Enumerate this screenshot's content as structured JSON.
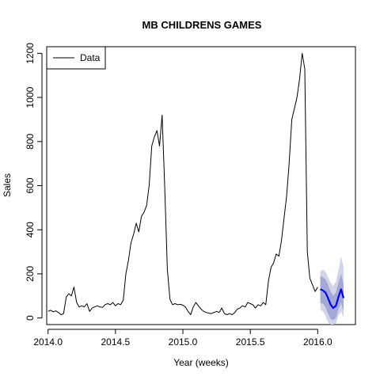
{
  "chart_data": {
    "type": "line",
    "title": "MB CHILDRENS GAMES",
    "xlabel": "Year (weeks)",
    "ylabel": "Sales",
    "xlim": [
      2013.99,
      2016.28
    ],
    "ylim": [
      -30,
      1230
    ],
    "x_ticks": [
      2014.0,
      2014.5,
      2015.0,
      2015.5,
      2016.0
    ],
    "x_tick_labels": [
      "2014.0",
      "2014.5",
      "2015.0",
      "2015.5",
      "2016.0"
    ],
    "y_ticks": [
      0,
      200,
      400,
      600,
      800,
      1000,
      1200
    ],
    "y_tick_labels": [
      "0",
      "200",
      "400",
      "600",
      "800",
      "1000",
      "1200"
    ],
    "legend": {
      "position": "top-left",
      "entries": [
        {
          "label": "Data",
          "color": "#000000"
        }
      ]
    },
    "series": [
      {
        "name": "Data",
        "color": "#000000",
        "x": [
          2014.0,
          2014.019,
          2014.038,
          2014.058,
          2014.077,
          2014.096,
          2014.115,
          2014.135,
          2014.154,
          2014.173,
          2014.192,
          2014.212,
          2014.231,
          2014.25,
          2014.269,
          2014.288,
          2014.308,
          2014.327,
          2014.346,
          2014.365,
          2014.385,
          2014.404,
          2014.423,
          2014.442,
          2014.462,
          2014.481,
          2014.5,
          2014.519,
          2014.538,
          2014.558,
          2014.577,
          2014.596,
          2014.615,
          2014.635,
          2014.654,
          2014.673,
          2014.692,
          2014.712,
          2014.731,
          2014.75,
          2014.769,
          2014.788,
          2014.808,
          2014.827,
          2014.846,
          2014.865,
          2014.885,
          2014.904,
          2014.923,
          2014.942,
          2014.962,
          2014.981,
          2015.0,
          2015.019,
          2015.038,
          2015.058,
          2015.077,
          2015.096,
          2015.115,
          2015.135,
          2015.154,
          2015.173,
          2015.192,
          2015.212,
          2015.231,
          2015.25,
          2015.269,
          2015.288,
          2015.308,
          2015.327,
          2015.346,
          2015.365,
          2015.385,
          2015.404,
          2015.423,
          2015.442,
          2015.462,
          2015.481,
          2015.5,
          2015.519,
          2015.538,
          2015.558,
          2015.577,
          2015.596,
          2015.615,
          2015.635,
          2015.654,
          2015.673,
          2015.692,
          2015.712,
          2015.731,
          2015.75,
          2015.769,
          2015.788,
          2015.808,
          2015.827,
          2015.846,
          2015.865,
          2015.885,
          2015.904,
          2015.923,
          2015.942,
          2015.962,
          2015.981,
          2016.0
        ],
        "y": [
          30,
          35,
          28,
          32,
          25,
          15,
          20,
          95,
          110,
          100,
          140,
          70,
          50,
          55,
          50,
          65,
          30,
          45,
          50,
          55,
          50,
          48,
          60,
          65,
          60,
          70,
          55,
          65,
          60,
          80,
          200,
          260,
          340,
          380,
          430,
          390,
          460,
          480,
          510,
          600,
          780,
          820,
          850,
          780,
          920,
          600,
          220,
          85,
          60,
          65,
          60,
          62,
          58,
          50,
          30,
          15,
          50,
          70,
          55,
          40,
          30,
          25,
          22,
          20,
          25,
          30,
          25,
          45,
          20,
          15,
          20,
          15,
          25,
          40,
          45,
          55,
          50,
          70,
          65,
          60,
          45,
          60,
          55,
          70,
          60,
          170,
          230,
          250,
          290,
          280,
          350,
          450,
          550,
          700,
          900,
          950,
          1000,
          1080,
          1200,
          1130,
          300,
          180,
          150,
          120,
          140
        ]
      },
      {
        "name": "",
        "color": "#0000ff",
        "x": [
          2016.019,
          2016.038,
          2016.058,
          2016.077,
          2016.096,
          2016.115,
          2016.135,
          2016.154,
          2016.173,
          2016.192
        ],
        "y": [
          130,
          125,
          115,
          90,
          60,
          45,
          55,
          95,
          130,
          90
        ],
        "band_inner": {
          "lower": [
            70,
            65,
            50,
            20,
            -5,
            -10,
            0,
            40,
            70,
            30
          ],
          "upper": [
            190,
            185,
            175,
            150,
            120,
            100,
            115,
            160,
            200,
            150
          ],
          "color": "#a3a8d4"
        },
        "band_outer": {
          "lower": [
            40,
            30,
            10,
            -20,
            -30,
            -30,
            -25,
            10,
            30,
            0
          ],
          "upper": [
            210,
            220,
            210,
            185,
            160,
            145,
            165,
            215,
            280,
            230
          ],
          "color": "#d2d4ea"
        }
      }
    ]
  }
}
